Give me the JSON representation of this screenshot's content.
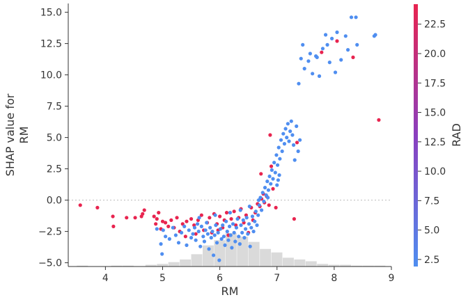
{
  "chart_data": {
    "type": "scatter",
    "title": "",
    "xlabel": "RM",
    "ylabel": [
      "SHAP value for",
      "RM"
    ],
    "xlim": [
      3.35,
      9.0
    ],
    "ylim": [
      -5.3,
      15.7
    ],
    "xticks": [
      "4",
      "5",
      "6",
      "7",
      "8",
      "9"
    ],
    "yticks": [
      "−5.0",
      "−2.5",
      "0.0",
      "2.5",
      "5.0",
      "7.5",
      "10.0",
      "12.5",
      "15.0"
    ],
    "zero_line": true,
    "grid": false,
    "colorbar": {
      "label": "RAD",
      "range": [
        1.9,
        24.2
      ],
      "ticks": [
        "2.5",
        "5.0",
        "7.5",
        "10.0",
        "12.5",
        "15.0",
        "17.5",
        "20.0",
        "22.5"
      ],
      "low_color": "#4f8ef0",
      "mid_color": "#8a3fbf",
      "high_color": "#e8244f"
    },
    "histogram": {
      "color": "#dadada",
      "note": "approximate distribution of RM, drawn as background bars",
      "bin_edges": [
        3.5,
        3.7,
        3.9,
        4.1,
        4.3,
        4.5,
        4.7,
        4.9,
        5.1,
        5.3,
        5.5,
        5.7,
        5.9,
        6.1,
        6.3,
        6.5,
        6.7,
        6.9,
        7.1,
        7.3,
        7.5,
        7.7,
        7.9,
        8.1,
        8.3,
        8.5,
        8.7,
        8.9
      ],
      "counts": [
        1,
        0,
        0,
        1,
        1,
        0,
        2,
        3,
        5,
        8,
        14,
        24,
        30,
        38,
        34,
        28,
        20,
        16,
        10,
        8,
        6,
        3,
        2,
        2,
        1,
        1,
        1
      ]
    },
    "series": [
      {
        "color_group": "high (RAD 24)",
        "color": "#e8244f",
        "points": [
          [
            3.56,
            -0.4
          ],
          [
            3.86,
            -0.6
          ],
          [
            4.13,
            -1.3
          ],
          [
            4.14,
            -2.1
          ],
          [
            4.37,
            -1.4
          ],
          [
            4.52,
            -1.4
          ],
          [
            4.63,
            -1.3
          ],
          [
            4.65,
            -1.1
          ],
          [
            4.68,
            -0.8
          ],
          [
            4.85,
            -1.3
          ],
          [
            4.88,
            -1.9
          ],
          [
            4.9,
            -1.5
          ],
          [
            4.93,
            -1.0
          ],
          [
            4.97,
            -2.3
          ],
          [
            5.0,
            -1.7
          ],
          [
            5.05,
            -1.8
          ],
          [
            5.1,
            -2.1
          ],
          [
            5.15,
            -1.6
          ],
          [
            5.2,
            -2.2
          ],
          [
            5.25,
            -1.4
          ],
          [
            5.3,
            -2.5
          ],
          [
            5.35,
            -1.9
          ],
          [
            5.42,
            -1.7
          ],
          [
            5.5,
            -1.5
          ],
          [
            5.55,
            -2.0
          ],
          [
            5.62,
            -1.6
          ],
          [
            5.68,
            -1.2
          ],
          [
            5.72,
            -2.4
          ],
          [
            5.78,
            -1.8
          ],
          [
            5.82,
            -1.4
          ],
          [
            5.86,
            -2.6
          ],
          [
            5.9,
            -1.1
          ],
          [
            5.95,
            -1.9
          ],
          [
            6.0,
            -1.3
          ],
          [
            6.05,
            -2.2
          ],
          [
            6.08,
            -1.6
          ],
          [
            6.12,
            -1.0
          ],
          [
            6.15,
            -2.8
          ],
          [
            6.2,
            -1.5
          ],
          [
            6.25,
            -0.9
          ],
          [
            6.28,
            -2.0
          ],
          [
            6.33,
            -1.4
          ],
          [
            6.37,
            -0.7
          ],
          [
            6.42,
            -1.8
          ],
          [
            6.46,
            -1.2
          ],
          [
            6.5,
            -2.6
          ],
          [
            6.55,
            -0.6
          ],
          [
            6.58,
            -1.6
          ],
          [
            6.62,
            -1.0
          ],
          [
            6.66,
            -0.3
          ],
          [
            6.7,
            -0.5
          ],
          [
            6.73,
            0.1
          ],
          [
            6.76,
            0.5
          ],
          [
            6.78,
            -0.2
          ],
          [
            6.82,
            0.3
          ],
          [
            6.86,
            -0.4
          ],
          [
            6.88,
            5.2
          ],
          [
            6.93,
            0.9
          ],
          [
            6.98,
            -0.6
          ],
          [
            6.72,
            2.1
          ],
          [
            6.9,
            2.7
          ],
          [
            7.3,
            -1.5
          ],
          [
            7.35,
            4.6
          ],
          [
            7.78,
            11.8
          ],
          [
            8.05,
            12.7
          ],
          [
            8.33,
            11.4
          ],
          [
            8.78,
            6.4
          ],
          [
            5.4,
            -2.9
          ],
          [
            5.58,
            -2.7
          ],
          [
            5.97,
            -2.4
          ]
        ]
      },
      {
        "color_group": "low (RAD 1-8)",
        "color": "#4f8ef0",
        "points": [
          [
            4.9,
            -2.3
          ],
          [
            4.97,
            -3.5
          ],
          [
            4.99,
            -4.3
          ],
          [
            5.01,
            -2.4
          ],
          [
            5.05,
            -2.9
          ],
          [
            5.12,
            -3.1
          ],
          [
            5.18,
            -2.2
          ],
          [
            5.23,
            -2.8
          ],
          [
            5.28,
            -3.4
          ],
          [
            5.33,
            -2.6
          ],
          [
            5.38,
            -2.1
          ],
          [
            5.42,
            -3.6
          ],
          [
            5.46,
            -2.4
          ],
          [
            5.5,
            -3.0
          ],
          [
            5.53,
            -2.7
          ],
          [
            5.56,
            -2.2
          ],
          [
            5.58,
            -3.2
          ],
          [
            5.61,
            -1.9
          ],
          [
            5.63,
            -2.5
          ],
          [
            5.66,
            -3.7
          ],
          [
            5.68,
            -2.1
          ],
          [
            5.71,
            -2.9
          ],
          [
            5.73,
            -3.3
          ],
          [
            5.75,
            -2.4
          ],
          [
            5.77,
            -1.8
          ],
          [
            5.79,
            -2.7
          ],
          [
            5.81,
            -3.9
          ],
          [
            5.83,
            -2.2
          ],
          [
            5.85,
            -3.0
          ],
          [
            5.87,
            -2.5
          ],
          [
            5.89,
            -4.4
          ],
          [
            5.91,
            -2.8
          ],
          [
            5.93,
            -2.0
          ],
          [
            5.95,
            -3.4
          ],
          [
            5.97,
            -2.6
          ],
          [
            5.99,
            -4.8
          ],
          [
            6.01,
            -2.3
          ],
          [
            6.03,
            -3.1
          ],
          [
            6.05,
            -2.0
          ],
          [
            6.07,
            -2.9
          ],
          [
            6.09,
            -3.6
          ],
          [
            6.11,
            -1.7
          ],
          [
            6.13,
            -2.5
          ],
          [
            6.15,
            -3.2
          ],
          [
            6.17,
            -2.1
          ],
          [
            6.19,
            -2.8
          ],
          [
            6.21,
            -3.8
          ],
          [
            6.23,
            -1.9
          ],
          [
            6.25,
            -2.6
          ],
          [
            6.27,
            -3.3
          ],
          [
            6.29,
            -2.2
          ],
          [
            6.31,
            -1.5
          ],
          [
            6.33,
            -2.9
          ],
          [
            6.35,
            -3.5
          ],
          [
            6.37,
            -2.0
          ],
          [
            6.39,
            -2.6
          ],
          [
            6.41,
            -1.6
          ],
          [
            6.43,
            -3.0
          ],
          [
            6.45,
            -2.3
          ],
          [
            6.47,
            -1.4
          ],
          [
            6.49,
            -2.7
          ],
          [
            6.51,
            -1.9
          ],
          [
            6.53,
            -3.7
          ],
          [
            6.55,
            -2.2
          ],
          [
            6.57,
            -1.3
          ],
          [
            6.59,
            -2.5
          ],
          [
            6.61,
            -1.7
          ],
          [
            6.63,
            -0.9
          ],
          [
            6.65,
            -2.0
          ],
          [
            6.67,
            -1.2
          ],
          [
            6.69,
            -0.4
          ],
          [
            6.71,
            0.2
          ],
          [
            6.73,
            -0.8
          ],
          [
            6.75,
            0.6
          ],
          [
            6.77,
            -0.1
          ],
          [
            6.79,
            1.0
          ],
          [
            6.81,
            0.4
          ],
          [
            6.83,
            1.5
          ],
          [
            6.85,
            0.8
          ],
          [
            6.87,
            1.9
          ],
          [
            6.89,
            1.3
          ],
          [
            6.91,
            2.4
          ],
          [
            6.93,
            1.7
          ],
          [
            6.95,
            3.0
          ],
          [
            6.97,
            2.2
          ],
          [
            6.99,
            3.6
          ],
          [
            7.01,
            2.8
          ],
          [
            7.03,
            4.2
          ],
          [
            7.05,
            3.3
          ],
          [
            7.07,
            4.8
          ],
          [
            7.09,
            3.9
          ],
          [
            7.11,
            5.3
          ],
          [
            7.13,
            4.5
          ],
          [
            7.15,
            5.7
          ],
          [
            7.17,
            5.0
          ],
          [
            7.19,
            6.1
          ],
          [
            7.21,
            4.7
          ],
          [
            7.23,
            5.5
          ],
          [
            7.25,
            6.3
          ],
          [
            7.27,
            5.2
          ],
          [
            7.29,
            4.4
          ],
          [
            7.31,
            3.2
          ],
          [
            7.34,
            5.9
          ],
          [
            7.37,
            3.9
          ],
          [
            7.4,
            4.8
          ],
          [
            5.64,
            -1.4
          ],
          [
            5.92,
            -1.2
          ],
          [
            6.18,
            -1.0
          ],
          [
            6.36,
            -0.8
          ],
          [
            6.52,
            -0.5
          ],
          [
            6.68,
            0.0
          ],
          [
            6.84,
            0.2
          ],
          [
            7.0,
            1.2
          ],
          [
            7.02,
            1.6
          ],
          [
            7.04,
            2.0
          ],
          [
            7.38,
            9.3
          ],
          [
            7.42,
            11.3
          ],
          [
            7.45,
            12.4
          ],
          [
            7.48,
            10.5
          ],
          [
            7.55,
            11.1
          ],
          [
            7.62,
            10.1
          ],
          [
            7.68,
            11.5
          ],
          [
            7.7,
            11.4
          ],
          [
            7.74,
            9.9
          ],
          [
            7.8,
            12.1
          ],
          [
            7.85,
            13.2
          ],
          [
            7.88,
            12.4
          ],
          [
            7.92,
            11.0
          ],
          [
            7.96,
            12.9
          ],
          [
            8.02,
            10.2
          ],
          [
            8.05,
            13.4
          ],
          [
            8.12,
            11.2
          ],
          [
            8.2,
            13.1
          ],
          [
            8.24,
            12.0
          ],
          [
            8.3,
            14.6
          ],
          [
            8.38,
            14.6
          ],
          [
            8.4,
            12.4
          ],
          [
            8.7,
            13.1
          ],
          [
            8.72,
            13.2
          ],
          [
            7.58,
            11.7
          ]
        ]
      }
    ]
  }
}
